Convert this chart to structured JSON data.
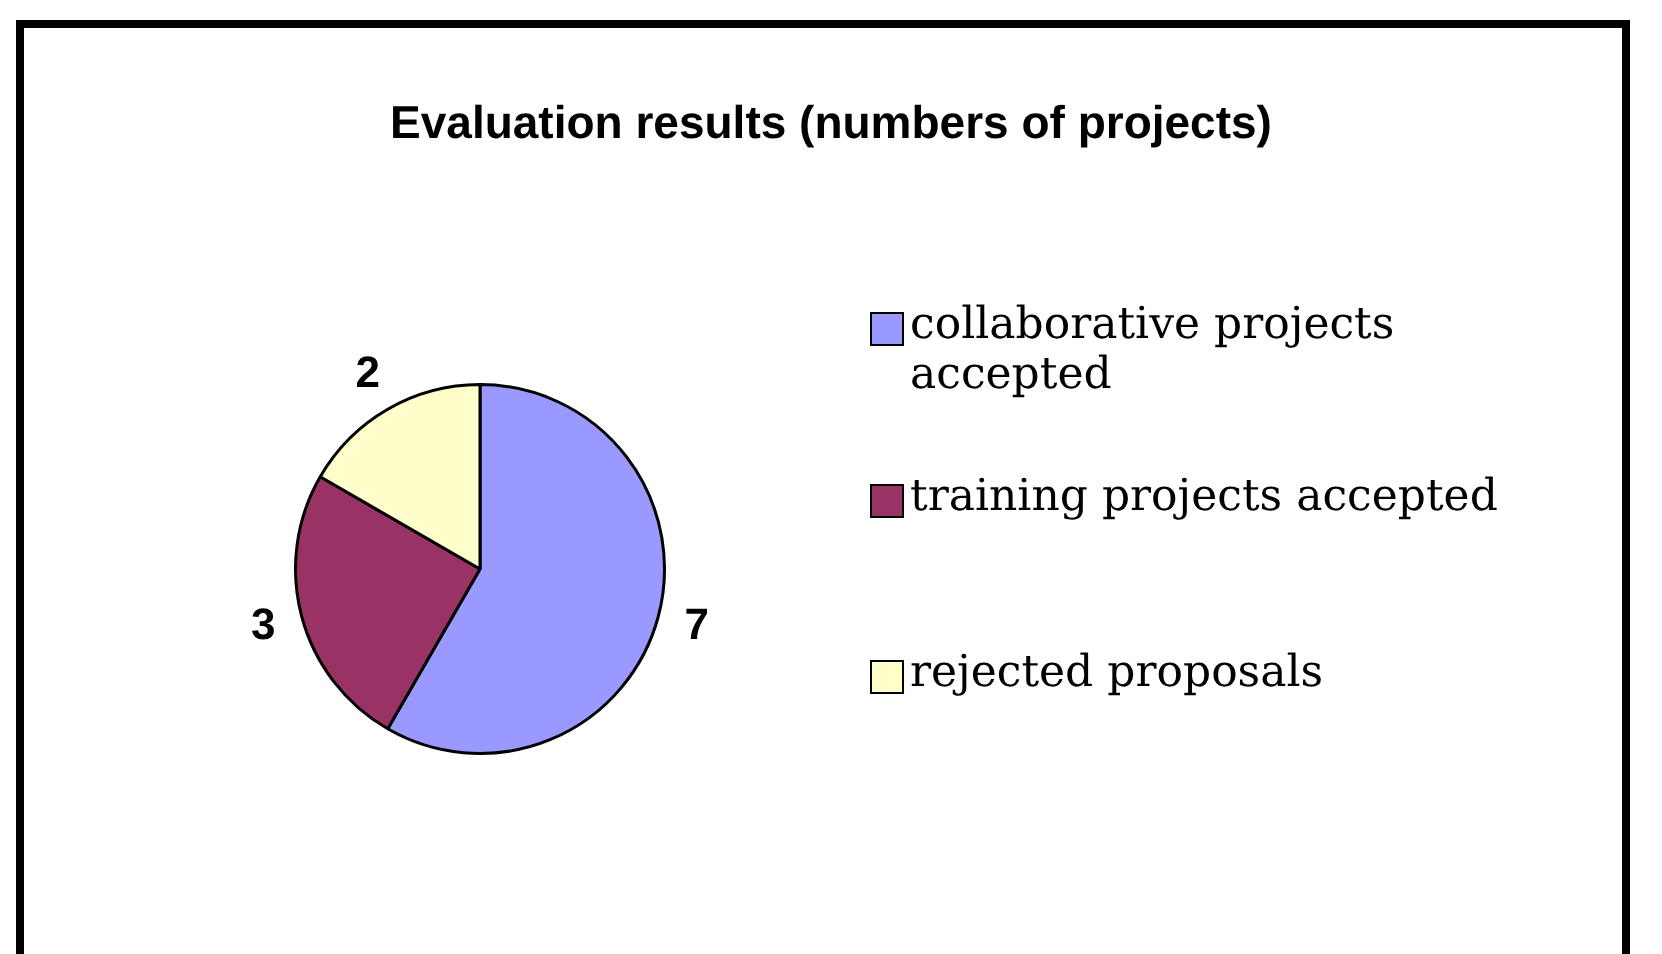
{
  "chart_data": {
    "type": "pie",
    "title": "Evaluation results (numbers of projects)",
    "categories": [
      "collaborative projects accepted",
      "training projects accepted",
      "rejected proposals"
    ],
    "values": [
      7,
      3,
      2
    ],
    "colors": [
      "#9999ff",
      "#993366",
      "#ffffcc"
    ],
    "data_labels": true,
    "legend": "right"
  }
}
